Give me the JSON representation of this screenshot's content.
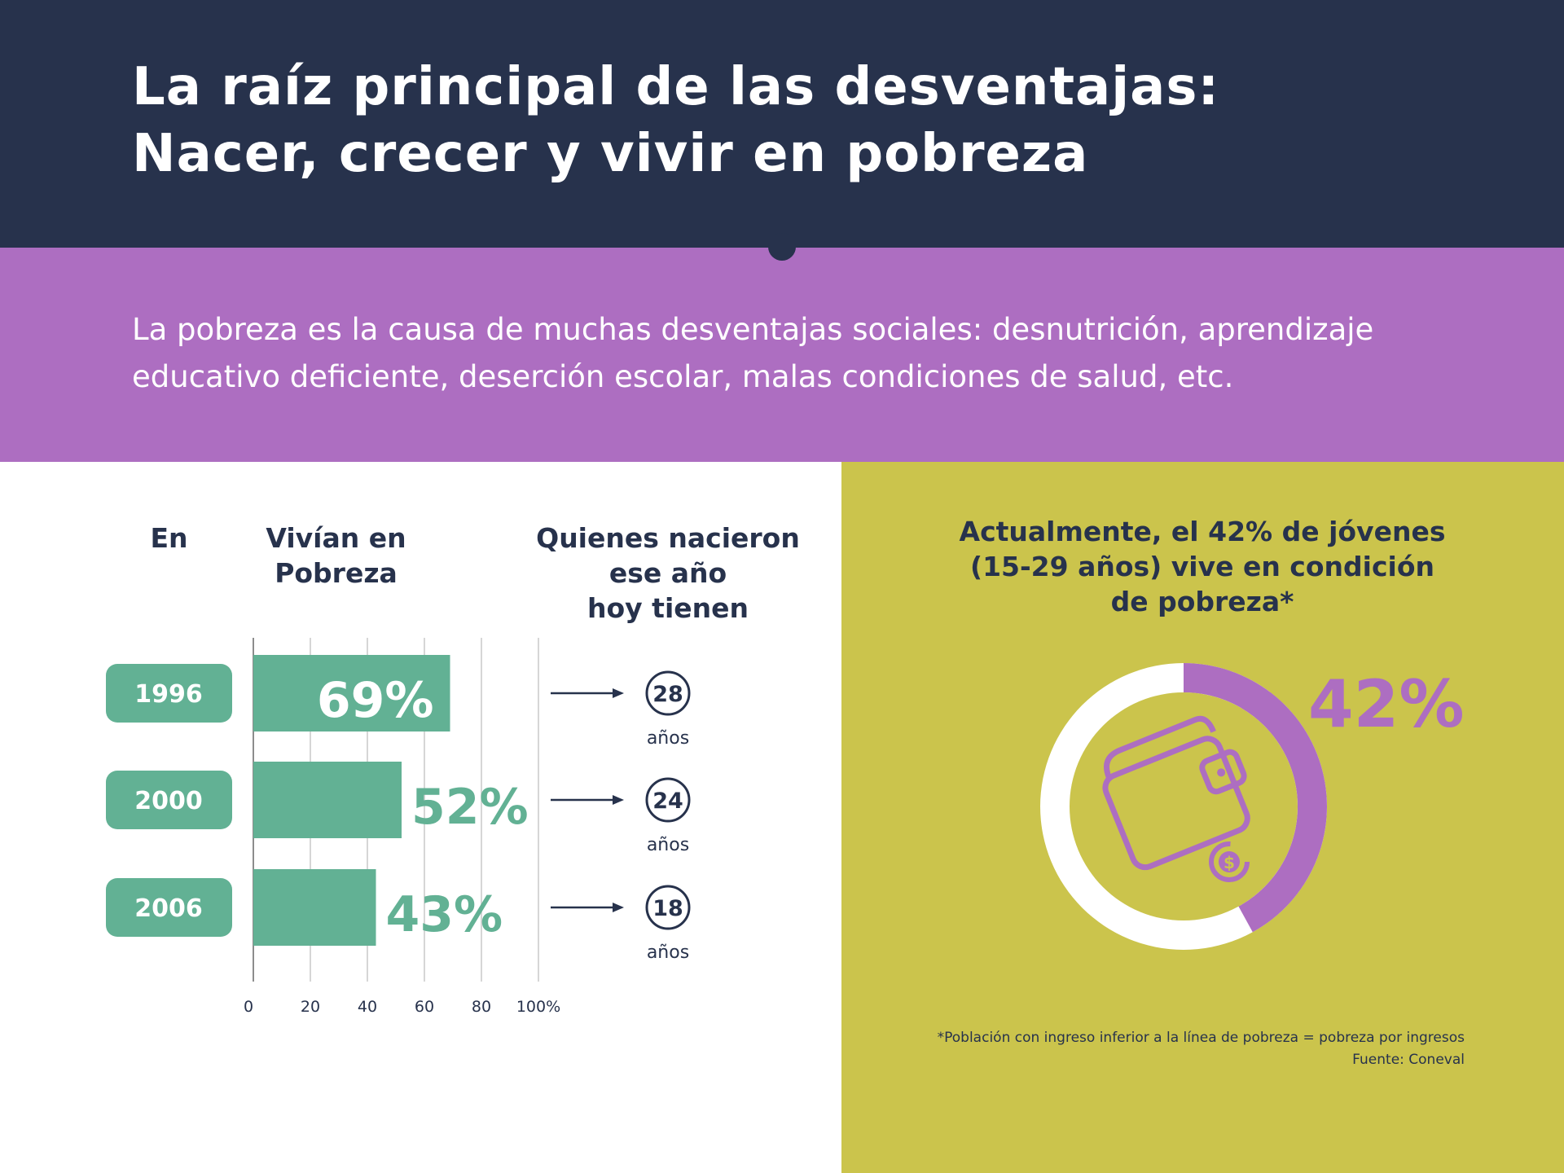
{
  "header": {
    "title_line1": "La raíz principal de las desventajas:",
    "title_line2": "Nacer, crecer y vivir en pobreza"
  },
  "intro": {
    "text": "La pobreza es la causa de muchas desventajas sociales: desnutrición, aprendizaje\neducativo deficiente, deserción escolar, malas condiciones de salud, etc."
  },
  "columns": {
    "year": "En",
    "poverty": "Vivían en\nPobreza",
    "age": "Quienes nacieron\nese año\nhoy tienen"
  },
  "chart_data": [
    {
      "type": "bar",
      "orientation": "horizontal",
      "categories": [
        "1996",
        "2000",
        "2006"
      ],
      "values": [
        69,
        52,
        43
      ],
      "value_labels": [
        "69%",
        "52%",
        "43%"
      ],
      "xlim": [
        0,
        100
      ],
      "xticks": [
        "0",
        "20",
        "40",
        "60",
        "80",
        "100%"
      ],
      "grid": true,
      "ages": [
        "28",
        "24",
        "18"
      ],
      "age_unit": "años"
    },
    {
      "type": "pie",
      "title": "Actualmente, el 42% de jóvenes\n(15-29 años) vive en condición\nde pobreza*",
      "value": 42,
      "value_label": "42%"
    }
  ],
  "icons": {
    "donut_center": "wallet-icon",
    "coin": "dollar-coin-icon",
    "arrow": "arrow-right-icon"
  },
  "footnote": {
    "line1": "*Población con ingreso inferior a la línea de pobreza = pobreza por ingresos",
    "line2": "Fuente: Coneval"
  },
  "colors": {
    "navy": "#27324c",
    "purple": "#ad6ec1",
    "green": "#62b194",
    "olive": "#cbc44c",
    "white": "#ffffff",
    "grid": "#c9c9c9"
  }
}
